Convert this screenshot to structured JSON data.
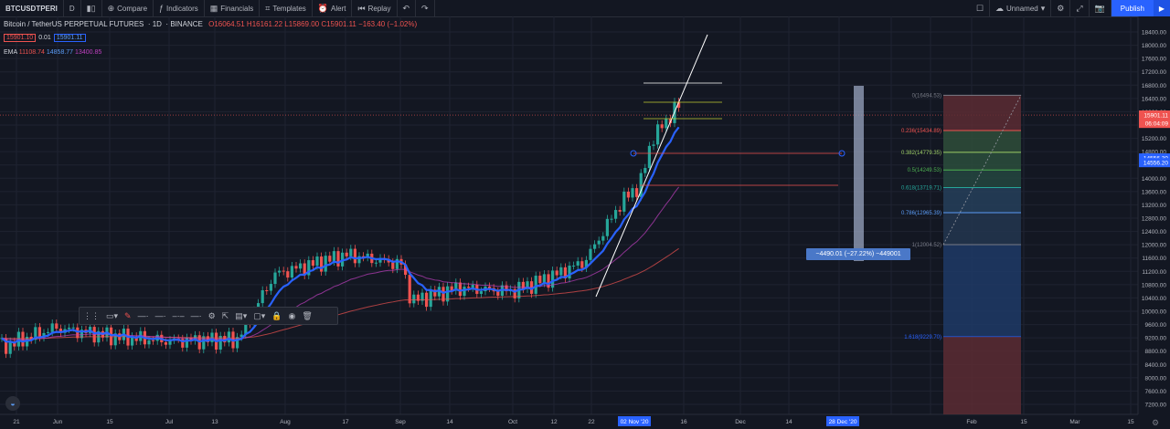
{
  "toolbar": {
    "symbol": "BTCUSDTPERI",
    "interval": "D",
    "compare": "Compare",
    "indicators": "Indicators",
    "financials": "Financials",
    "templates": "Templates",
    "alert": "Alert",
    "replay": "Replay",
    "layout_name": "Unnamed",
    "publish": "Publish"
  },
  "legend": {
    "title": "Bitcoin / TetherUS PERPETUAL FUTURES",
    "interval": "1D",
    "exchange": "BINANCE",
    "ohlc": "O16064.51  H16161.22  L15869.00  C15901.11  −163.40 (−1.02%)",
    "sell_price": "15901.10",
    "spread": "0.01",
    "buy_price": "15901.11",
    "ema_label": "EMA",
    "ema_1": "11108.74",
    "ema_2": "14858.77",
    "ema_3": "13400.85"
  },
  "price_axis": {
    "ticks": [
      "18400.00",
      "18000.00",
      "17600.00",
      "17200.00",
      "16800.00",
      "16400.00",
      "16000.00",
      "15600.00",
      "15200.00",
      "14800.00",
      "14400.00",
      "14000.00",
      "13600.00",
      "13200.00",
      "12800.00",
      "12400.00",
      "12000.00",
      "11600.00",
      "11200.00",
      "10800.00",
      "10400.00",
      "10000.00",
      "9600.00",
      "9200.00",
      "8800.00",
      "8400.00",
      "8000.00",
      "7600.00",
      "7200.00"
    ],
    "last_price": "15901.11",
    "countdown": "06:04:09",
    "marker_a": "14556.30",
    "marker_b": "14556.20"
  },
  "time_axis": {
    "labels": [
      "21",
      "Jun",
      "15",
      "Jul",
      "13",
      "Aug",
      "17",
      "Sep",
      "14",
      "Oct",
      "12",
      "22",
      "16",
      "Dec",
      "14",
      "21",
      "Feb",
      "15",
      "Mar",
      "15"
    ],
    "highlight_start": "02 Nov '20",
    "highlight_end": "28 Dec '20"
  },
  "fib": {
    "levels": [
      {
        "label": "0(16494.53)",
        "color": "#787b86"
      },
      {
        "label": "0.236(15434.89)",
        "color": "#ef5350"
      },
      {
        "label": "0.382(14779.35)",
        "color": "#9ccc65"
      },
      {
        "label": "0.5(14249.53)",
        "color": "#4caf50"
      },
      {
        "label": "0.618(13719.71)",
        "color": "#26a69a"
      },
      {
        "label": "0.786(12965.39)",
        "color": "#5b9cf6"
      },
      {
        "label": "1(12004.52)",
        "color": "#787b86"
      },
      {
        "label": "1.618(9229.70)",
        "color": "#2962ff"
      }
    ]
  },
  "measure": {
    "text": "−4490.01 (−27.22%) −449001"
  },
  "colors": {
    "up": "#26a69a",
    "down": "#ef5350",
    "accent": "#2962ff"
  }
}
